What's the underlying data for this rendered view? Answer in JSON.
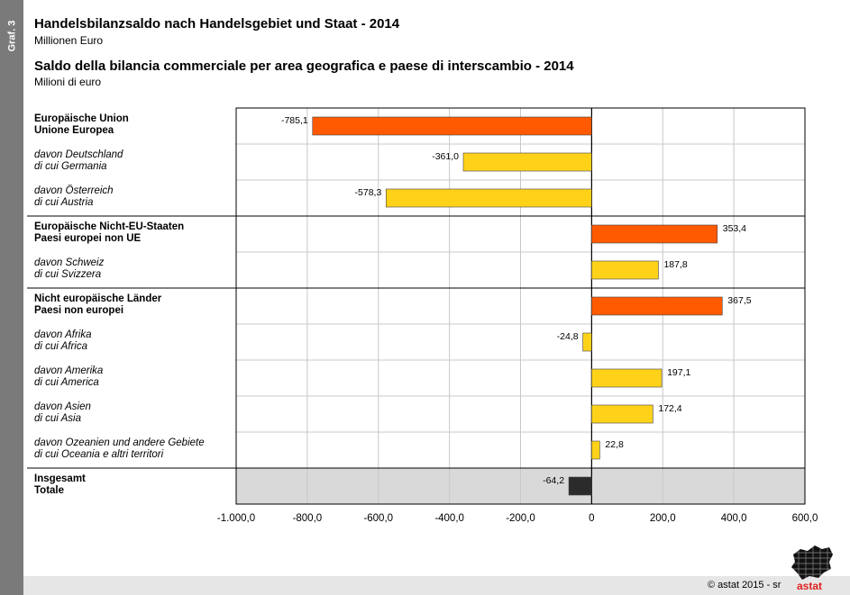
{
  "side_label": "Graf. 3",
  "header": {
    "title_de": "Handelsbilanzsaldo nach Handelsgebiet und Staat - 2014",
    "unit_de": "Millionen Euro",
    "title_it": "Saldo della bilancia commerciale per area geografica e paese di interscambio - 2014",
    "unit_it": "Milioni di euro"
  },
  "chart_data": {
    "type": "bar",
    "orientation": "horizontal",
    "xlim": [
      -1000,
      600
    ],
    "x_ticks": [
      -1000,
      -800,
      -600,
      -400,
      -200,
      0,
      200,
      400,
      600
    ],
    "x_tick_labels": [
      "-1.000,0",
      "-800,0",
      "-600,0",
      "-400,0",
      "-200,0",
      "0",
      "200,0",
      "400,0",
      "600,0"
    ],
    "grid": true,
    "colors": {
      "total": "#2b2b2b",
      "main": "#ff5a00",
      "sub": "#ffd21a"
    },
    "categories": [
      {
        "line1": "Europäische Union",
        "line2": "Unione Europea",
        "value": -785.1,
        "label": "-785,1",
        "style": "main"
      },
      {
        "line1": "davon Deutschland",
        "line2": "di cui Germania",
        "value": -361.0,
        "label": "-361,0",
        "style": "sub"
      },
      {
        "line1": "davon Österreich",
        "line2": "di cui Austria",
        "value": -578.3,
        "label": "-578,3",
        "style": "sub"
      },
      {
        "line1": "Europäische Nicht-EU-Staaten",
        "line2": "Paesi europei non UE",
        "value": 353.4,
        "label": "353,4",
        "style": "main"
      },
      {
        "line1": "davon Schweiz",
        "line2": "di cui Svizzera",
        "value": 187.8,
        "label": "187,8",
        "style": "sub"
      },
      {
        "line1": "Nicht europäische Länder",
        "line2": "Paesi non europei",
        "value": 367.5,
        "label": "367,5",
        "style": "main"
      },
      {
        "line1": "davon Afrika",
        "line2": "di cui Africa",
        "value": -24.8,
        "label": "-24,8",
        "style": "sub"
      },
      {
        "line1": "davon Amerika",
        "line2": "di cui America",
        "value": 197.1,
        "label": "197,1",
        "style": "sub"
      },
      {
        "line1": "davon Asien",
        "line2": "di cui Asia",
        "value": 172.4,
        "label": "172,4",
        "style": "sub"
      },
      {
        "line1": "davon Ozeanien und andere Gebiete",
        "line2": "di cui Oceania e altri territori",
        "value": 22.8,
        "label": "22,8",
        "style": "sub"
      },
      {
        "line1": "Insgesamt",
        "line2": "Totale",
        "value": -64.2,
        "label": "-64,2",
        "style": "total"
      }
    ]
  },
  "footer": {
    "copyright": "©  astat 2015 - sr",
    "logo_text": "astat"
  }
}
